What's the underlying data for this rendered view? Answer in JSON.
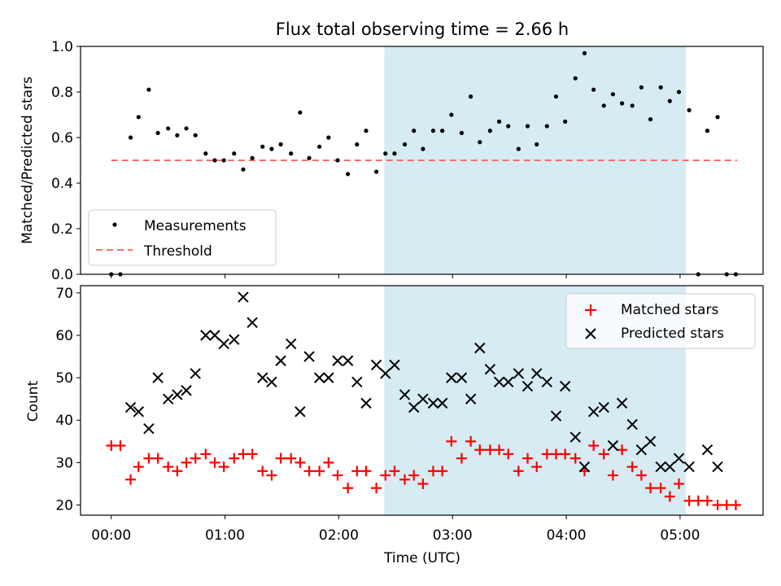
{
  "chart_data": [
    {
      "type": "scatter",
      "title": "Flux total observing time = 2.66 h",
      "xlabel": "",
      "ylabel": "Matched/Predicted stars",
      "ylim": [
        0,
        1.0
      ],
      "yticks": [
        "0.0",
        "0.2",
        "0.4",
        "0.6",
        "0.8",
        "1.0"
      ],
      "xlim_hours": [
        -0.27,
        5.73
      ],
      "shaded_span_hours": [
        2.4,
        5.05
      ],
      "shade_color": "#add8e6",
      "grid": false,
      "legend_position": "lower-left",
      "legend": [
        {
          "label": "Measurements",
          "marker": "dot",
          "color": "#000000"
        },
        {
          "label": "Threshold",
          "marker": "dashed-line",
          "color": "#ff6b6b"
        }
      ],
      "threshold": {
        "y": 0.5,
        "x_from_hours": 0.0,
        "x_to_hours": 5.5
      },
      "series": [
        {
          "name": "Measurements",
          "color": "#000000",
          "points": [
            [
              0.0,
              0.0
            ],
            [
              0.08,
              0.0
            ],
            [
              0.17,
              0.6
            ],
            [
              0.24,
              0.69
            ],
            [
              0.33,
              0.81
            ],
            [
              0.41,
              0.62
            ],
            [
              0.5,
              0.64
            ],
            [
              0.58,
              0.61
            ],
            [
              0.66,
              0.64
            ],
            [
              0.74,
              0.61
            ],
            [
              0.83,
              0.53
            ],
            [
              0.91,
              0.5
            ],
            [
              0.99,
              0.5
            ],
            [
              1.08,
              0.53
            ],
            [
              1.16,
              0.46
            ],
            [
              1.24,
              0.51
            ],
            [
              1.33,
              0.56
            ],
            [
              1.41,
              0.55
            ],
            [
              1.49,
              0.57
            ],
            [
              1.58,
              0.53
            ],
            [
              1.66,
              0.71
            ],
            [
              1.74,
              0.51
            ],
            [
              1.83,
              0.56
            ],
            [
              1.91,
              0.6
            ],
            [
              1.99,
              0.5
            ],
            [
              2.08,
              0.44
            ],
            [
              2.16,
              0.57
            ],
            [
              2.24,
              0.63
            ],
            [
              2.33,
              0.45
            ],
            [
              2.41,
              0.53
            ],
            [
              2.49,
              0.53
            ],
            [
              2.58,
              0.57
            ],
            [
              2.66,
              0.63
            ],
            [
              2.74,
              0.55
            ],
            [
              2.83,
              0.63
            ],
            [
              2.91,
              0.63
            ],
            [
              2.99,
              0.7
            ],
            [
              3.08,
              0.62
            ],
            [
              3.16,
              0.78
            ],
            [
              3.24,
              0.58
            ],
            [
              3.33,
              0.63
            ],
            [
              3.41,
              0.67
            ],
            [
              3.49,
              0.65
            ],
            [
              3.58,
              0.55
            ],
            [
              3.66,
              0.65
            ],
            [
              3.74,
              0.57
            ],
            [
              3.83,
              0.65
            ],
            [
              3.91,
              0.78
            ],
            [
              3.99,
              0.67
            ],
            [
              4.08,
              0.86
            ],
            [
              4.16,
              0.97
            ],
            [
              4.24,
              0.81
            ],
            [
              4.33,
              0.74
            ],
            [
              4.41,
              0.79
            ],
            [
              4.49,
              0.75
            ],
            [
              4.58,
              0.74
            ],
            [
              4.66,
              0.82
            ],
            [
              4.74,
              0.68
            ],
            [
              4.83,
              0.82
            ],
            [
              4.91,
              0.76
            ],
            [
              4.99,
              0.8
            ],
            [
              5.08,
              0.72
            ],
            [
              5.16,
              0.0
            ],
            [
              5.24,
              0.63
            ],
            [
              5.33,
              0.69
            ],
            [
              5.41,
              0.0
            ],
            [
              5.49,
              0.0
            ]
          ]
        }
      ]
    },
    {
      "type": "scatter",
      "title": "",
      "xlabel": "Time (UTC)",
      "ylabel": "Count",
      "ylim": [
        17.6,
        71.7
      ],
      "yticks": [
        "20",
        "30",
        "40",
        "50",
        "60",
        "70"
      ],
      "xticks": [
        "00:00",
        "01:00",
        "02:00",
        "03:00",
        "04:00",
        "05:00"
      ],
      "xlim_hours": [
        -0.27,
        5.73
      ],
      "shaded_span_hours": [
        2.4,
        5.05
      ],
      "shade_color": "#add8e6",
      "grid": false,
      "legend_position": "top-right",
      "legend": [
        {
          "label": "Matched stars",
          "marker": "plus",
          "color": "#ff0000"
        },
        {
          "label": "Predicted stars",
          "marker": "x",
          "color": "#000000"
        }
      ],
      "series": [
        {
          "name": "Matched stars",
          "marker": "plus",
          "color": "#ff0000",
          "points": [
            [
              0.0,
              34
            ],
            [
              0.08,
              34
            ],
            [
              0.17,
              26
            ],
            [
              0.24,
              29
            ],
            [
              0.33,
              31
            ],
            [
              0.41,
              31
            ],
            [
              0.5,
              29
            ],
            [
              0.58,
              28
            ],
            [
              0.66,
              30
            ],
            [
              0.74,
              31
            ],
            [
              0.83,
              32
            ],
            [
              0.91,
              30
            ],
            [
              0.99,
              29
            ],
            [
              1.08,
              31
            ],
            [
              1.16,
              32
            ],
            [
              1.24,
              32
            ],
            [
              1.33,
              28
            ],
            [
              1.41,
              27
            ],
            [
              1.49,
              31
            ],
            [
              1.58,
              31
            ],
            [
              1.66,
              30
            ],
            [
              1.74,
              28
            ],
            [
              1.83,
              28
            ],
            [
              1.91,
              30
            ],
            [
              1.99,
              27
            ],
            [
              2.08,
              24
            ],
            [
              2.16,
              28
            ],
            [
              2.24,
              28
            ],
            [
              2.33,
              24
            ],
            [
              2.41,
              27
            ],
            [
              2.49,
              28
            ],
            [
              2.58,
              26
            ],
            [
              2.66,
              27
            ],
            [
              2.74,
              25
            ],
            [
              2.83,
              28
            ],
            [
              2.91,
              28
            ],
            [
              2.99,
              35
            ],
            [
              3.08,
              31
            ],
            [
              3.16,
              35
            ],
            [
              3.24,
              33
            ],
            [
              3.33,
              33
            ],
            [
              3.41,
              33
            ],
            [
              3.49,
              32
            ],
            [
              3.58,
              28
            ],
            [
              3.66,
              31
            ],
            [
              3.74,
              29
            ],
            [
              3.83,
              32
            ],
            [
              3.91,
              32
            ],
            [
              3.99,
              32
            ],
            [
              4.08,
              31
            ],
            [
              4.16,
              28
            ],
            [
              4.24,
              34
            ],
            [
              4.33,
              32
            ],
            [
              4.41,
              27
            ],
            [
              4.49,
              33
            ],
            [
              4.58,
              29
            ],
            [
              4.66,
              27
            ],
            [
              4.74,
              24
            ],
            [
              4.83,
              24
            ],
            [
              4.91,
              22
            ],
            [
              4.99,
              25
            ],
            [
              5.08,
              21
            ],
            [
              5.16,
              21
            ],
            [
              5.24,
              21
            ],
            [
              5.33,
              20
            ],
            [
              5.41,
              20
            ],
            [
              5.49,
              20
            ]
          ]
        },
        {
          "name": "Predicted stars",
          "marker": "x",
          "color": "#000000",
          "points": [
            [
              0.17,
              43
            ],
            [
              0.24,
              42
            ],
            [
              0.33,
              38
            ],
            [
              0.41,
              50
            ],
            [
              0.5,
              45
            ],
            [
              0.58,
              46
            ],
            [
              0.66,
              47
            ],
            [
              0.74,
              51
            ],
            [
              0.83,
              60
            ],
            [
              0.91,
              60
            ],
            [
              0.99,
              58
            ],
            [
              1.08,
              59
            ],
            [
              1.16,
              69
            ],
            [
              1.24,
              63
            ],
            [
              1.33,
              50
            ],
            [
              1.41,
              49
            ],
            [
              1.49,
              54
            ],
            [
              1.58,
              58
            ],
            [
              1.66,
              42
            ],
            [
              1.74,
              55
            ],
            [
              1.83,
              50
            ],
            [
              1.91,
              50
            ],
            [
              1.99,
              54
            ],
            [
              2.08,
              54
            ],
            [
              2.16,
              49
            ],
            [
              2.24,
              44
            ],
            [
              2.33,
              53
            ],
            [
              2.41,
              51
            ],
            [
              2.49,
              53
            ],
            [
              2.58,
              46
            ],
            [
              2.66,
              43
            ],
            [
              2.74,
              45
            ],
            [
              2.83,
              44
            ],
            [
              2.91,
              44
            ],
            [
              2.99,
              50
            ],
            [
              3.08,
              50
            ],
            [
              3.16,
              45
            ],
            [
              3.24,
              57
            ],
            [
              3.33,
              52
            ],
            [
              3.41,
              49
            ],
            [
              3.49,
              49
            ],
            [
              3.58,
              51
            ],
            [
              3.66,
              48
            ],
            [
              3.74,
              51
            ],
            [
              3.83,
              49
            ],
            [
              3.91,
              41
            ],
            [
              3.99,
              48
            ],
            [
              4.08,
              36
            ],
            [
              4.16,
              29
            ],
            [
              4.24,
              42
            ],
            [
              4.33,
              43
            ],
            [
              4.41,
              34
            ],
            [
              4.49,
              44
            ],
            [
              4.58,
              39
            ],
            [
              4.66,
              33
            ],
            [
              4.74,
              35
            ],
            [
              4.83,
              29
            ],
            [
              4.91,
              29
            ],
            [
              4.99,
              31
            ],
            [
              5.08,
              29
            ],
            [
              5.24,
              33
            ],
            [
              5.33,
              29
            ]
          ]
        }
      ]
    }
  ]
}
